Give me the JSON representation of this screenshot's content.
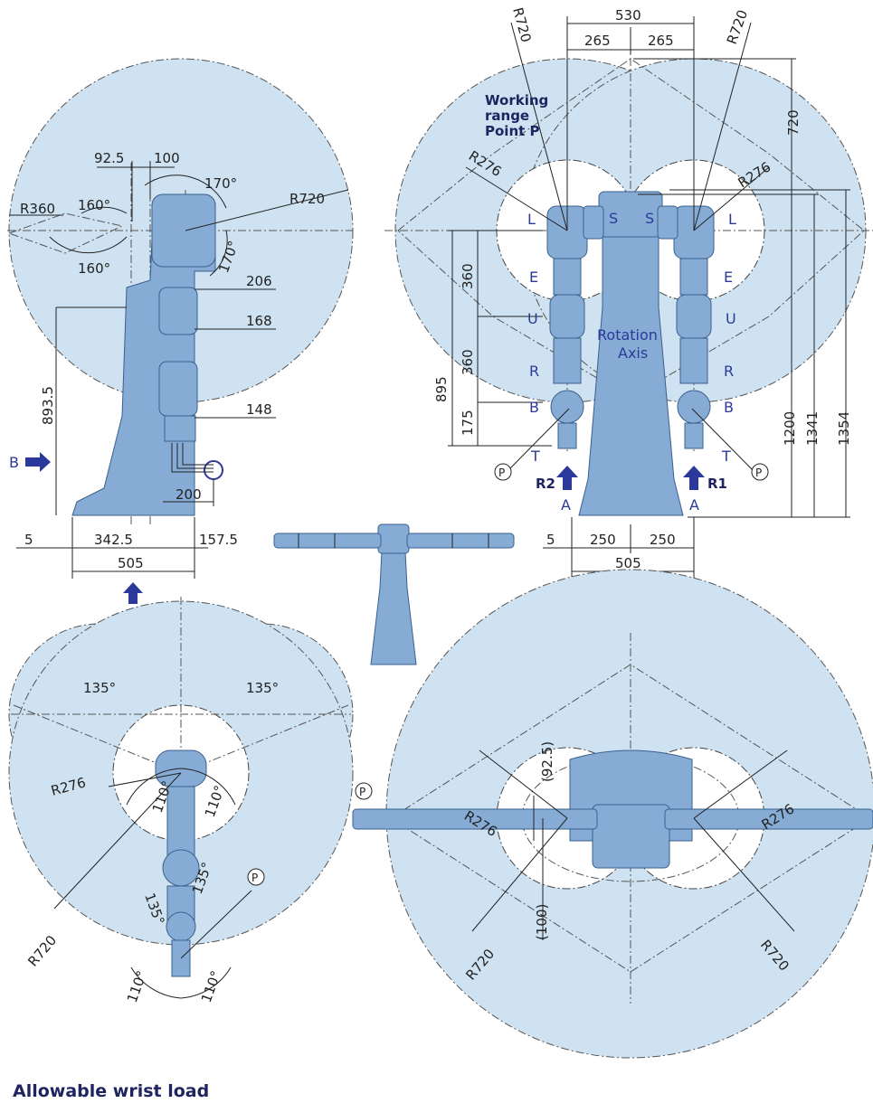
{
  "title": "Allowable wrist load",
  "working_range_label": [
    "Working",
    "range",
    "Point P"
  ],
  "side_view": {
    "dims": {
      "d92_5": "92.5",
      "d100": "100",
      "r720": "R720",
      "r360": "R360",
      "a160_top": "160°",
      "a160_bot": "160°",
      "a170_top": "170°",
      "a170_side": "170°",
      "d206": "206",
      "d168": "168",
      "d148": "148",
      "d893_5": "893.5",
      "d200": "200",
      "d5": "5",
      "d342_5": "342.5",
      "d157_5": "157.5",
      "d505": "505"
    },
    "view_b": "B",
    "view_c": "C"
  },
  "front_view": {
    "dims": {
      "d530": "530",
      "d265a": "265",
      "d265b": "265",
      "r720a": "R720",
      "r720b": "R720",
      "d720": "720",
      "r276a": "R276",
      "r276b": "R276",
      "d360a": "360",
      "d360b": "360",
      "d175": "175",
      "d895": "895",
      "d1200": "1200",
      "d1341": "1341",
      "d1354": "1354",
      "d5": "5",
      "d250a": "250",
      "d250b": "250",
      "d505": "505"
    },
    "axis_left": [
      "L",
      "E",
      "U",
      "R",
      "B",
      "T"
    ],
    "axis_right": [
      "L",
      "E",
      "U",
      "R",
      "B",
      "T"
    ],
    "s_left": "S",
    "s_right": "S",
    "rotation_axis": [
      "Rotation",
      "Axis"
    ],
    "r1": "R1",
    "r2": "R2",
    "view_a_left": "A",
    "view_a_right": "A",
    "point_p": "P"
  },
  "top_view_left": {
    "dims": {
      "a135a": "135°",
      "a135b": "135°",
      "a110a": "110°",
      "a110b": "110°",
      "a135c": "135°",
      "a135d": "135°",
      "a110c": "110°",
      "a110d": "110°",
      "r276": "R276",
      "r720": "R720"
    },
    "point_p": "P"
  },
  "top_view_right": {
    "dims": {
      "d92_5": "(92.5)",
      "d100": "(100)",
      "r276a": "R276",
      "r276b": "R276",
      "r720a": "R720",
      "r720b": "R720"
    },
    "point_p": "P"
  }
}
